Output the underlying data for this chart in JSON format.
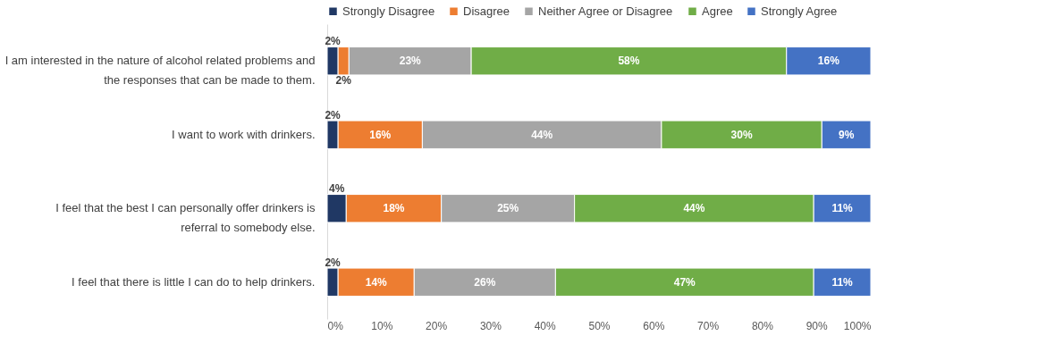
{
  "chart_data": {
    "type": "bar",
    "orientation": "horizontal",
    "stacked": true,
    "categories": [
      "I am interested in the nature of alcohol related problems and the responses that can be made to them.",
      "I want to work with drinkers.",
      "I feel that the best I can personally offer drinkers is referral to somebody else.",
      "I feel that there is little I can do to help drinkers."
    ],
    "series": [
      {
        "name": "Strongly Disagree",
        "color": "#203864",
        "values": [
          2,
          2,
          3.5,
          2
        ],
        "value_labels": [
          "2%",
          "2%",
          "4%",
          "2%"
        ]
      },
      {
        "name": "Disagree",
        "color": "#ed7d31",
        "values": [
          2,
          15.5,
          17.5,
          14
        ],
        "value_labels": [
          "2%",
          "16%",
          "18%",
          "14%"
        ]
      },
      {
        "name": "Neither Agree or Disagree",
        "color": "#a5a5a5",
        "values": [
          22.5,
          44,
          24.5,
          26
        ],
        "value_labels": [
          "23%",
          "44%",
          "25%",
          "26%"
        ]
      },
      {
        "name": "Agree",
        "color": "#70ad47",
        "values": [
          58,
          29.5,
          44,
          47.5
        ],
        "value_labels": [
          "58%",
          "30%",
          "44%",
          "47%"
        ]
      },
      {
        "name": "Strongly Agree",
        "color": "#4472c4",
        "values": [
          15.5,
          9,
          10.5,
          10.5
        ],
        "value_labels": [
          "16%",
          "9%",
          "11%",
          "11%"
        ]
      }
    ],
    "xlim": [
      0,
      100
    ],
    "xticks": [
      {
        "value": 0,
        "label": "0%"
      },
      {
        "value": 10,
        "label": "10%"
      },
      {
        "value": 20,
        "label": "20%"
      },
      {
        "value": 30,
        "label": "30%"
      },
      {
        "value": 40,
        "label": "40%"
      },
      {
        "value": 50,
        "label": "50%"
      },
      {
        "value": 60,
        "label": "60%"
      },
      {
        "value": 70,
        "label": "70%"
      },
      {
        "value": 80,
        "label": "80%"
      },
      {
        "value": 90,
        "label": "90%"
      },
      {
        "value": 100,
        "label": "100%"
      }
    ],
    "grid": false,
    "legend": "top right"
  }
}
